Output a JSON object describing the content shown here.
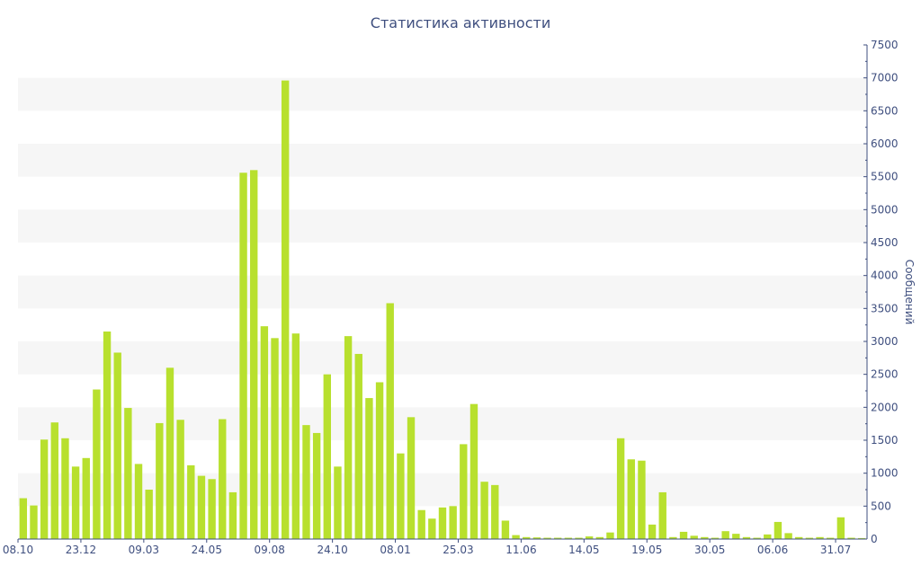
{
  "chart_data": {
    "type": "bar",
    "title": "Статистика активности",
    "xlabel": "",
    "ylabel": "Сообщений",
    "ylim": [
      0,
      7500
    ],
    "y_ticks": [
      0,
      500,
      1000,
      1500,
      2000,
      2500,
      3000,
      3500,
      4000,
      4500,
      5000,
      5500,
      6000,
      6500,
      7000,
      7500
    ],
    "x_tick_labels": [
      {
        "label": "08.10",
        "index": 0
      },
      {
        "label": "23.12",
        "index": 6
      },
      {
        "label": "09.03",
        "index": 12
      },
      {
        "label": "24.05",
        "index": 18
      },
      {
        "label": "09.08",
        "index": 24
      },
      {
        "label": "24.10",
        "index": 30
      },
      {
        "label": "08.01",
        "index": 36
      },
      {
        "label": "25.03",
        "index": 42
      },
      {
        "label": "11.06",
        "index": 48
      },
      {
        "label": "14.05",
        "index": 54
      },
      {
        "label": "19.05",
        "index": 60
      },
      {
        "label": "30.05",
        "index": 66
      },
      {
        "label": "06.06",
        "index": 72
      },
      {
        "label": "31.07",
        "index": 78
      }
    ],
    "bar_color": "#b8e02e",
    "stripe_color": "#f6f6f6",
    "axis_color": "#3f4f7f",
    "grid": "alternating-bands",
    "values": [
      620,
      510,
      1510,
      1770,
      1530,
      1100,
      1230,
      2270,
      3150,
      2830,
      1990,
      1140,
      750,
      1760,
      2600,
      1810,
      1120,
      960,
      910,
      1820,
      710,
      5560,
      5600,
      3230,
      3050,
      6960,
      3120,
      1730,
      1610,
      2500,
      1100,
      3080,
      2810,
      2140,
      2380,
      3580,
      1300,
      1850,
      440,
      310,
      480,
      500,
      1440,
      2050,
      870,
      820,
      280,
      60,
      30,
      25,
      20,
      20,
      20,
      20,
      40,
      30,
      100,
      1530,
      1210,
      1190,
      220,
      710,
      30,
      110,
      50,
      30,
      20,
      120,
      80,
      30,
      20,
      70,
      260,
      90,
      30,
      20,
      30,
      20,
      330,
      20,
      15
    ]
  }
}
